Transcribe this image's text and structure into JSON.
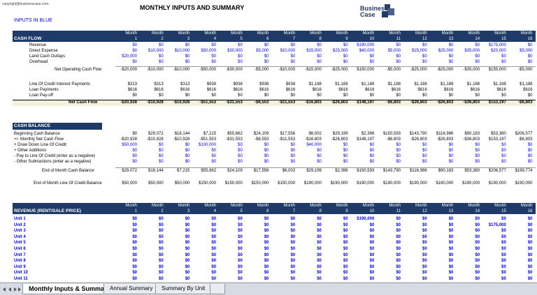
{
  "header": {
    "copyright": "copyright@businesscase.com",
    "title": "MONTHLY INPUTS AND SUMMARY",
    "logo": "Business Case",
    "note": "INPUTS IN BLUE"
  },
  "month_label": "Month",
  "months": [
    1,
    2,
    3,
    4,
    5,
    6,
    7,
    8,
    9,
    10,
    11,
    12,
    13,
    14,
    15,
    16
  ],
  "cash_flow": {
    "title": "CASH FLOW",
    "rows": [
      {
        "label": "Revenue",
        "values": [
          "$0",
          "$0",
          "$0",
          "$0",
          "$0",
          "$0",
          "$0",
          "$0",
          "$0",
          "$190,000",
          "$0",
          "$0",
          "$0",
          "$0",
          "$175,000",
          "$0"
        ]
      },
      {
        "label": "Direct Expense",
        "values": [
          "$0",
          "$10,000",
          "$10,000",
          "$50,000",
          "$30,000",
          "$5,000",
          "$10,000",
          "$15,000",
          "$25,000",
          "$40,000",
          "$5,000",
          "$25,000",
          "$25,000",
          "$35,000",
          "$20,000",
          "$5,000"
        ]
      },
      {
        "label": "Land Cash Outlays",
        "values": [
          "$20,000",
          "$0",
          "$0",
          "$0",
          "$0",
          "$0",
          "$0",
          "$0",
          "$0",
          "$0",
          "$0",
          "$0",
          "$0",
          "$0",
          "$0",
          "$0"
        ]
      },
      {
        "label": "Overhead",
        "values": [
          "$0",
          "$0",
          "$0",
          "$0",
          "$0",
          "$0",
          "$0",
          "$0",
          "$0",
          "$0",
          "$0",
          "$0",
          "$0",
          "$0",
          "$0",
          "$0"
        ]
      },
      {
        "label": "Net Operating Cash Flow",
        "values": [
          "-$20,000",
          "-$10,000",
          "-$10,000",
          "-$50,000",
          "-$30,000",
          "-$5,000",
          "-$10,000",
          "-$15,000",
          "-$25,000",
          "$150,000",
          "-$5,000",
          "-$25,000",
          "-$25,000",
          "-$35,000",
          "$155,000",
          "-$5,000"
        ]
      },
      {
        "label": "Line Of Credit Interest Payments",
        "values": [
          "$313",
          "$313",
          "$313",
          "$938",
          "$938",
          "$938",
          "$938",
          "$1,188",
          "$1,188",
          "$1,188",
          "$1,188",
          "$1,188",
          "$1,188",
          "$1,188",
          "$1,188",
          "$1,188"
        ]
      },
      {
        "label": "Loan Payments",
        "values": [
          "$616",
          "$616",
          "$616",
          "$616",
          "$616",
          "$616",
          "$616",
          "$616",
          "$616",
          "$616",
          "$616",
          "$616",
          "$616",
          "$616",
          "$616",
          "$616"
        ]
      },
      {
        "label": "Loan Pay-off",
        "values": [
          "$0",
          "$0",
          "$0",
          "$0",
          "$0",
          "$0",
          "$0",
          "$0",
          "$0",
          "$0",
          "$0",
          "$0",
          "$0",
          "$0",
          "$0",
          "$0"
        ]
      },
      {
        "label": "Net Cash Flow",
        "values": [
          "-$20,928",
          "-$10,928",
          "-$10,928",
          "-$51,553",
          "-$31,553",
          "-$6,553",
          "-$11,553",
          "-$16,803",
          "-$26,803",
          "$148,197",
          "-$6,803",
          "-$26,803",
          "-$26,803",
          "-$36,803",
          "$153,197",
          "-$6,803"
        ]
      }
    ]
  },
  "cash_balance": {
    "title": "CASH BALANCE",
    "rows": [
      {
        "label": "Beginning Cash Balance",
        "values": [
          "$0",
          "$29,072",
          "$18,144",
          "$7,215",
          "$55,662",
          "$24,109",
          "$17,556",
          "$6,002",
          "$29,199",
          "$2,396",
          "$150,593",
          "$143,790",
          "$116,986",
          "$90,183",
          "$53,380",
          "$206,577"
        ]
      },
      {
        "label": "+/- Monthly Net Cash Flow",
        "values": [
          "-$20,928",
          "-$10,928",
          "-$10,928",
          "-$51,553",
          "-$31,553",
          "-$6,553",
          "-$11,553",
          "-$16,803",
          "-$26,803",
          "$148,197",
          "-$6,803",
          "-$26,803",
          "-$26,803",
          "-$36,803",
          "$153,197",
          "-$6,803"
        ]
      },
      {
        "label": "+ Draw Down Line Of Credit",
        "values": [
          "$50,000",
          "$0",
          "$0",
          "$100,000",
          "$0",
          "$0",
          "$0",
          "$40,000",
          "$0",
          "$0",
          "$0",
          "$0",
          "$0",
          "$0",
          "$0",
          "$0"
        ]
      },
      {
        "label": "+ Other Additions",
        "values": [
          "$0",
          "$0",
          "$0",
          "$0",
          "$0",
          "$0",
          "$0",
          "$0",
          "$0",
          "$0",
          "$0",
          "$0",
          "$0",
          "$0",
          "$0",
          "$0"
        ]
      },
      {
        "label": "- Pay to Line Of Credit (enter as a negative)",
        "values": [
          "$0",
          "$0",
          "$0",
          "$0",
          "$0",
          "$0",
          "$0",
          "$0",
          "$0",
          "$0",
          "$0",
          "$0",
          "$0",
          "$0",
          "$0",
          "$0"
        ]
      },
      {
        "label": "- Other Subtractions (enter as a negative)",
        "values": [
          "$0",
          "$0",
          "$0",
          "$0",
          "$0",
          "$0",
          "$0",
          "$0",
          "$0",
          "$0",
          "$0",
          "$0",
          "$0",
          "$0",
          "$0",
          "$0"
        ]
      },
      {
        "label": "End of Month Cash Balance",
        "values": [
          "$29,072",
          "$18,144",
          "$7,215",
          "$55,662",
          "$24,109",
          "$17,556",
          "$6,002",
          "$29,199",
          "$2,396",
          "$150,593",
          "$143,790",
          "$116,986",
          "$90,183",
          "$53,380",
          "$206,577",
          "$199,774"
        ]
      },
      {
        "label": "End of Month Line Of Credit Balance",
        "values": [
          "$50,000",
          "$50,000",
          "$50,000",
          "$150,000",
          "$150,000",
          "$150,000",
          "$150,000",
          "$190,000",
          "$190,000",
          "$190,000",
          "$190,000",
          "$190,000",
          "$190,000",
          "$190,000",
          "$190,000",
          "$190,000"
        ]
      }
    ]
  },
  "revenue": {
    "title": "REVENUE (RENT/SALE PRICE)",
    "rows": [
      {
        "label": "Unit 1",
        "values": [
          "$0",
          "$0",
          "$0",
          "$0",
          "$0",
          "$0",
          "$0",
          "$0",
          "$0",
          "$190,000",
          "$0",
          "$0",
          "$0",
          "$0",
          "$0",
          "$0"
        ]
      },
      {
        "label": "Unit 2",
        "values": [
          "$0",
          "$0",
          "$0",
          "$0",
          "$0",
          "$0",
          "$0",
          "$0",
          "$0",
          "$0",
          "$0",
          "$0",
          "$0",
          "$0",
          "$175,000",
          "$0"
        ]
      },
      {
        "label": "Unit 3",
        "values": [
          "$0",
          "$0",
          "$0",
          "$0",
          "$0",
          "$0",
          "$0",
          "$0",
          "$0",
          "$0",
          "$0",
          "$0",
          "$0",
          "$0",
          "$0",
          "$0"
        ]
      },
      {
        "label": "Unit 4",
        "values": [
          "$0",
          "$0",
          "$0",
          "$0",
          "$0",
          "$0",
          "$0",
          "$0",
          "$0",
          "$0",
          "$0",
          "$0",
          "$0",
          "$0",
          "$0",
          "$0"
        ]
      },
      {
        "label": "Unit 5",
        "values": [
          "$0",
          "$0",
          "$0",
          "$0",
          "$0",
          "$0",
          "$0",
          "$0",
          "$0",
          "$0",
          "$0",
          "$0",
          "$0",
          "$0",
          "$0",
          "$0"
        ]
      },
      {
        "label": "Unit 6",
        "values": [
          "$0",
          "$0",
          "$0",
          "$0",
          "$0",
          "$0",
          "$0",
          "$0",
          "$0",
          "$0",
          "$0",
          "$0",
          "$0",
          "$0",
          "$0",
          "$0"
        ]
      },
      {
        "label": "Unit 7",
        "values": [
          "$0",
          "$0",
          "$0",
          "$0",
          "$0",
          "$0",
          "$0",
          "$0",
          "$0",
          "$0",
          "$0",
          "$0",
          "$0",
          "$0",
          "$0",
          "$0"
        ]
      },
      {
        "label": "Unit 8",
        "values": [
          "$0",
          "$0",
          "$0",
          "$0",
          "$0",
          "$0",
          "$0",
          "$0",
          "$0",
          "$0",
          "$0",
          "$0",
          "$0",
          "$0",
          "$0",
          "$0"
        ]
      },
      {
        "label": "Unit 9",
        "values": [
          "$0",
          "$0",
          "$0",
          "$0",
          "$0",
          "$0",
          "$0",
          "$0",
          "$0",
          "$0",
          "$0",
          "$0",
          "$0",
          "$0",
          "$0",
          "$0"
        ]
      },
      {
        "label": "Unit 10",
        "values": [
          "$0",
          "$0",
          "$0",
          "$0",
          "$0",
          "$0",
          "$0",
          "$0",
          "$0",
          "$0",
          "$0",
          "$0",
          "$0",
          "$0",
          "$0",
          "$0"
        ]
      },
      {
        "label": "Unit 11",
        "values": [
          "$0",
          "$0",
          "$0",
          "$0",
          "$0",
          "$0",
          "$0",
          "$0",
          "$0",
          "$0",
          "$0",
          "$0",
          "$0",
          "$0",
          "$0",
          "$0"
        ]
      }
    ]
  },
  "tabs": [
    "Monthly Inputs & Summary",
    "Annual Summary",
    "Summary By Unit"
  ]
}
